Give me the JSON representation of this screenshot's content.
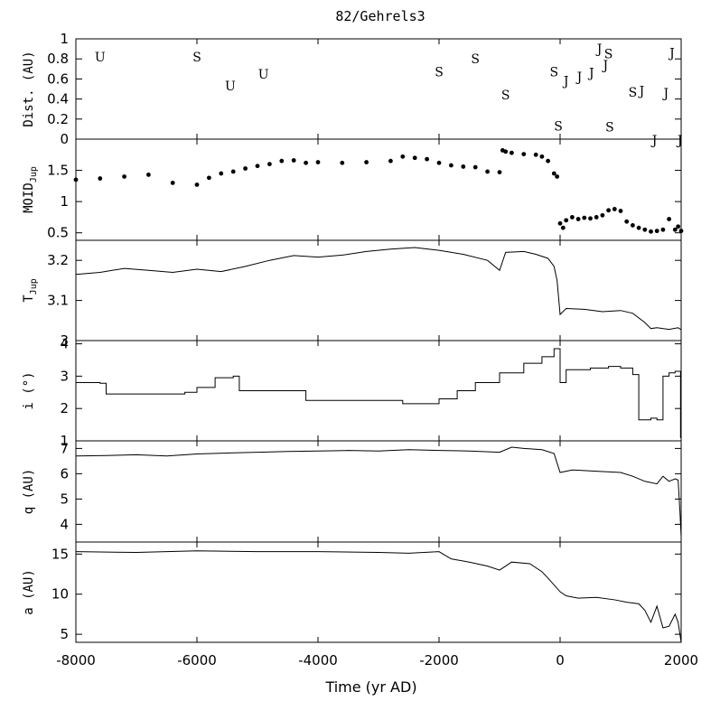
{
  "chart_data": {
    "title": "82/Gehrels3",
    "type": "multi-panel-timeseries",
    "x_axis": {
      "label": "Time (yr AD)",
      "range": [
        -8000,
        2000
      ],
      "ticks": [
        -8000,
        -6000,
        -4000,
        -2000,
        0,
        2000
      ],
      "tick_labels": [
        "-8000",
        "-6000",
        "-4000",
        "-2000",
        "0",
        "2000"
      ]
    },
    "panels": [
      {
        "id": "dist",
        "ylabel": "Dist. (AU)",
        "type": "scatter-labels",
        "ylim": [
          0,
          1
        ],
        "yticks": [
          0,
          0.2,
          0.4,
          0.6,
          0.8,
          1
        ],
        "ytick_labels": [
          "0",
          "0.2",
          "0.4",
          "0.6",
          "0.8",
          "1"
        ],
        "encounters": [
          {
            "x": -7600,
            "y": 0.82,
            "planet": "U"
          },
          {
            "x": -6000,
            "y": 0.82,
            "planet": "S"
          },
          {
            "x": -5450,
            "y": 0.53,
            "planet": "U"
          },
          {
            "x": -4900,
            "y": 0.65,
            "planet": "U"
          },
          {
            "x": -2000,
            "y": 0.67,
            "planet": "S"
          },
          {
            "x": -1400,
            "y": 0.8,
            "planet": "S"
          },
          {
            "x": -900,
            "y": 0.44,
            "planet": "S"
          },
          {
            "x": -100,
            "y": 0.67,
            "planet": "S"
          },
          {
            "x": 100,
            "y": 0.58,
            "planet": "J"
          },
          {
            "x": 320,
            "y": 0.62,
            "planet": "J"
          },
          {
            "x": 520,
            "y": 0.66,
            "planet": "J"
          },
          {
            "x": 650,
            "y": 0.9,
            "planet": "J"
          },
          {
            "x": 750,
            "y": 0.74,
            "planet": "J"
          },
          {
            "x": 800,
            "y": 0.85,
            "planet": "S"
          },
          {
            "x": -30,
            "y": 0.13,
            "planet": "S"
          },
          {
            "x": 820,
            "y": 0.12,
            "planet": "S"
          },
          {
            "x": 1200,
            "y": 0.47,
            "planet": "S"
          },
          {
            "x": 1350,
            "y": 0.48,
            "planet": "J"
          },
          {
            "x": 1750,
            "y": 0.46,
            "planet": "J"
          },
          {
            "x": 1850,
            "y": 0.86,
            "planet": "J"
          },
          {
            "x": 1560,
            "y": -0.01,
            "planet": "J"
          },
          {
            "x": 1980,
            "y": -0.01,
            "planet": "J"
          }
        ]
      },
      {
        "id": "moid",
        "ylabel_main": "MOID",
        "ylabel_sub": "Jup",
        "type": "scatter",
        "ylim": [
          0.38,
          2.0
        ],
        "yticks": [
          0.5,
          1,
          1.5
        ],
        "ytick_labels": [
          "0.5",
          "1",
          "1.5"
        ],
        "x": [
          -8000,
          -7600,
          -7200,
          -6800,
          -6400,
          -6000,
          -5800,
          -5600,
          -5400,
          -5200,
          -5000,
          -4800,
          -4600,
          -4400,
          -4200,
          -4000,
          -3600,
          -3200,
          -2800,
          -2600,
          -2400,
          -2200,
          -2000,
          -1800,
          -1600,
          -1400,
          -1200,
          -1000,
          -950,
          -900,
          -800,
          -600,
          -400,
          -300,
          -200,
          -100,
          -50,
          0,
          50,
          100,
          200,
          300,
          400,
          500,
          600,
          700,
          800,
          900,
          1000,
          1100,
          1200,
          1300,
          1400,
          1500,
          1600,
          1700,
          1800,
          1900,
          1950,
          2000
        ],
        "y": [
          1.35,
          1.37,
          1.4,
          1.43,
          1.3,
          1.27,
          1.38,
          1.45,
          1.48,
          1.53,
          1.57,
          1.6,
          1.65,
          1.66,
          1.62,
          1.63,
          1.62,
          1.63,
          1.65,
          1.72,
          1.7,
          1.68,
          1.62,
          1.58,
          1.56,
          1.55,
          1.48,
          1.47,
          1.82,
          1.8,
          1.78,
          1.76,
          1.75,
          1.72,
          1.65,
          1.45,
          1.4,
          0.65,
          0.58,
          0.7,
          0.75,
          0.72,
          0.74,
          0.73,
          0.75,
          0.78,
          0.86,
          0.88,
          0.85,
          0.68,
          0.62,
          0.58,
          0.55,
          0.52,
          0.53,
          0.55,
          0.72,
          0.55,
          0.6,
          0.53
        ]
      },
      {
        "id": "tjup",
        "ylabel_main": "T",
        "ylabel_sub": "Jup",
        "type": "line",
        "ylim": [
          3.0,
          3.25
        ],
        "yticks": [
          3,
          3.1,
          3.2
        ],
        "ytick_labels": [
          "3",
          "3.1",
          "3.2"
        ],
        "x": [
          -8000,
          -7600,
          -7200,
          -6800,
          -6400,
          -6000,
          -5600,
          -5200,
          -4800,
          -4400,
          -4000,
          -3600,
          -3200,
          -2800,
          -2400,
          -2000,
          -1600,
          -1200,
          -1000,
          -900,
          -600,
          -400,
          -200,
          -100,
          -50,
          0,
          100,
          400,
          700,
          1000,
          1200,
          1400,
          1500,
          1600,
          1800,
          1950,
          2000
        ],
        "y": [
          3.165,
          3.17,
          3.18,
          3.175,
          3.17,
          3.178,
          3.172,
          3.185,
          3.2,
          3.212,
          3.208,
          3.213,
          3.222,
          3.228,
          3.232,
          3.225,
          3.215,
          3.2,
          3.175,
          3.22,
          3.222,
          3.215,
          3.205,
          3.185,
          3.15,
          3.065,
          3.08,
          3.078,
          3.072,
          3.075,
          3.068,
          3.045,
          3.03,
          3.032,
          3.028,
          3.032,
          3.027
        ]
      },
      {
        "id": "incl",
        "ylabel": "i (°)",
        "type": "step",
        "ylim": [
          1,
          4.1
        ],
        "yticks": [
          1,
          2,
          3,
          4
        ],
        "ytick_labels": [
          "1",
          "2",
          "3",
          "4"
        ],
        "x": [
          -8000,
          -7600,
          -7500,
          -6200,
          -6000,
          -5700,
          -5400,
          -5300,
          -4200,
          -2600,
          -2000,
          -1700,
          -1400,
          -1000,
          -600,
          -300,
          -100,
          0,
          100,
          500,
          800,
          1000,
          1200,
          1300,
          1500,
          1600,
          1700,
          1800,
          1900,
          1950,
          1990,
          2000
        ],
        "y": [
          2.8,
          2.78,
          2.45,
          2.5,
          2.65,
          2.95,
          3.0,
          2.55,
          2.25,
          2.15,
          2.3,
          2.55,
          2.8,
          3.1,
          3.4,
          3.6,
          3.85,
          2.8,
          3.2,
          3.25,
          3.3,
          3.25,
          3.05,
          1.65,
          1.7,
          1.65,
          3.0,
          3.1,
          3.15,
          3.15,
          1.1,
          1.05
        ]
      },
      {
        "id": "q",
        "ylabel": "q (AU)",
        "type": "line",
        "ylim": [
          3.3,
          7.3
        ],
        "yticks": [
          4,
          5,
          6,
          7
        ],
        "ytick_labels": [
          "4",
          "5",
          "6",
          "7"
        ],
        "x": [
          -8000,
          -7500,
          -7000,
          -6500,
          -6000,
          -5500,
          -5000,
          -4500,
          -4000,
          -3500,
          -3000,
          -2500,
          -2000,
          -1500,
          -1000,
          -800,
          -600,
          -300,
          -100,
          0,
          200,
          600,
          1000,
          1200,
          1400,
          1600,
          1700,
          1800,
          1900,
          1950,
          1980,
          2000
        ],
        "y": [
          6.7,
          6.72,
          6.75,
          6.7,
          6.78,
          6.82,
          6.85,
          6.88,
          6.9,
          6.92,
          6.9,
          6.95,
          6.92,
          6.9,
          6.85,
          7.05,
          7.0,
          6.95,
          6.8,
          6.05,
          6.15,
          6.1,
          6.05,
          5.9,
          5.7,
          5.6,
          5.9,
          5.7,
          5.8,
          5.75,
          4.5,
          3.5
        ]
      },
      {
        "id": "a",
        "ylabel": "a (AU)",
        "type": "line",
        "ylim": [
          4,
          16.5
        ],
        "yticks": [
          5,
          10,
          15
        ],
        "ytick_labels": [
          "5",
          "10",
          "15"
        ],
        "x": [
          -8000,
          -7000,
          -6000,
          -5000,
          -4000,
          -3000,
          -2500,
          -2000,
          -1800,
          -1500,
          -1200,
          -1000,
          -800,
          -500,
          -300,
          -200,
          0,
          100,
          300,
          600,
          900,
          1100,
          1300,
          1400,
          1500,
          1600,
          1700,
          1800,
          1900,
          1950,
          2000
        ],
        "y": [
          15.3,
          15.2,
          15.4,
          15.3,
          15.3,
          15.2,
          15.1,
          15.3,
          14.4,
          14.0,
          13.5,
          13.0,
          14.0,
          13.8,
          12.8,
          12.0,
          10.3,
          9.8,
          9.5,
          9.6,
          9.3,
          9.0,
          8.8,
          8.0,
          6.5,
          8.5,
          5.8,
          6.0,
          7.5,
          6.5,
          4.0
        ]
      }
    ]
  }
}
